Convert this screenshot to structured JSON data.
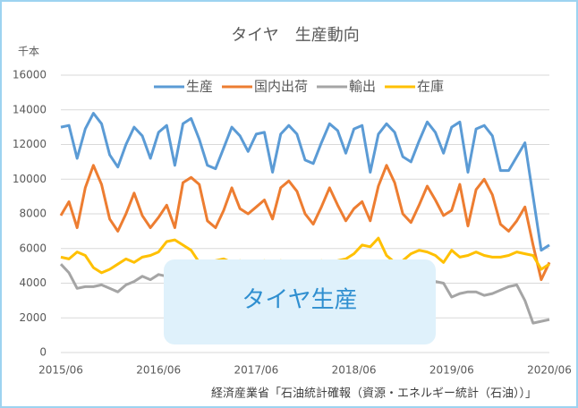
{
  "chart_data": {
    "type": "line",
    "title": "タイヤ　生産動向",
    "y_unit": "千本",
    "source": "経済産業省「石油統計確報（資源・エネルギー統計（石油））」",
    "annotation": "タイヤ生産",
    "legend": "top",
    "grid": true,
    "ylim": [
      0,
      16000
    ],
    "yticks": [
      0,
      2000,
      4000,
      6000,
      8000,
      10000,
      12000,
      14000,
      16000
    ],
    "categories": [
      "2015/06",
      null,
      null,
      null,
      null,
      null,
      null,
      null,
      null,
      null,
      null,
      null,
      "2016/06",
      null,
      null,
      null,
      null,
      null,
      null,
      null,
      null,
      null,
      null,
      null,
      "2017/06",
      null,
      null,
      null,
      null,
      null,
      null,
      null,
      null,
      null,
      null,
      null,
      "2018/06",
      null,
      null,
      null,
      null,
      null,
      null,
      null,
      null,
      null,
      null,
      null,
      "2019/06",
      null,
      null,
      null,
      null,
      null,
      null,
      null,
      null,
      null,
      null,
      null,
      "2020/06"
    ],
    "series": [
      {
        "name": "生産",
        "color": "#5b9bd5",
        "values": [
          13000,
          13100,
          11200,
          12900,
          13800,
          13200,
          11400,
          10700,
          12000,
          13000,
          12500,
          11200,
          12700,
          13100,
          10800,
          13200,
          13500,
          12300,
          10800,
          10600,
          11800,
          13000,
          12500,
          11600,
          12600,
          12700,
          10400,
          12600,
          13100,
          12600,
          11100,
          10900,
          12100,
          13200,
          12800,
          11500,
          12900,
          13100,
          10400,
          12600,
          13200,
          12700,
          11300,
          11000,
          12200,
          13300,
          12700,
          11500,
          13000,
          13300,
          10400,
          12900,
          13100,
          12500,
          10500,
          10500,
          11300,
          12100,
          9000,
          5900,
          6200
        ]
      },
      {
        "name": "国内出荷",
        "color": "#ed7d31",
        "values": [
          7900,
          8700,
          7200,
          9500,
          10800,
          9700,
          7700,
          7000,
          8000,
          9200,
          7900,
          7200,
          7800,
          8500,
          7200,
          9800,
          10100,
          9700,
          7600,
          7200,
          8200,
          9500,
          8300,
          8000,
          8400,
          8800,
          7700,
          9500,
          9900,
          9300,
          8000,
          7400,
          8400,
          9500,
          8500,
          7600,
          8300,
          8700,
          7600,
          9600,
          10800,
          9800,
          8000,
          7500,
          8500,
          9600,
          8800,
          7900,
          8200,
          9700,
          7300,
          9400,
          10000,
          9100,
          7400,
          7000,
          7600,
          8400,
          6200,
          4200,
          5200
        ]
      },
      {
        "name": "輸出",
        "color": "#a5a5a5",
        "values": [
          5100,
          4600,
          3700,
          3800,
          3800,
          3900,
          3700,
          3500,
          3900,
          4100,
          4400,
          4200,
          4500,
          4400,
          4300,
          4200,
          4000,
          4200,
          4300,
          4200,
          4100,
          4300,
          4400,
          4200,
          4300,
          4200,
          4100,
          4300,
          4200,
          4000,
          4100,
          4300,
          4200,
          4300,
          4100,
          4200,
          4300,
          4200,
          4100,
          4300,
          4200,
          4000,
          4200,
          4300,
          4100,
          4200,
          4100,
          4000,
          3200,
          3400,
          3500,
          3500,
          3300,
          3400,
          3600,
          3800,
          3900,
          3000,
          1700,
          1800,
          1900
        ]
      },
      {
        "name": "在庫",
        "color": "#ffc000",
        "values": [
          5500,
          5400,
          5800,
          5600,
          4900,
          4600,
          4800,
          5100,
          5400,
          5200,
          5500,
          5600,
          5800,
          6400,
          6500,
          6200,
          5900,
          5200,
          5100,
          5300,
          5400,
          5200,
          5300,
          5100,
          5100,
          5300,
          5200,
          5300,
          5100,
          5000,
          5100,
          5200,
          5300,
          5200,
          5300,
          5400,
          5700,
          6200,
          6100,
          6600,
          5600,
          5200,
          5300,
          5700,
          5900,
          5800,
          5600,
          5200,
          5900,
          5500,
          5600,
          5800,
          5600,
          5500,
          5500,
          5600,
          5800,
          5700,
          5600,
          4800,
          5100
        ]
      }
    ]
  }
}
